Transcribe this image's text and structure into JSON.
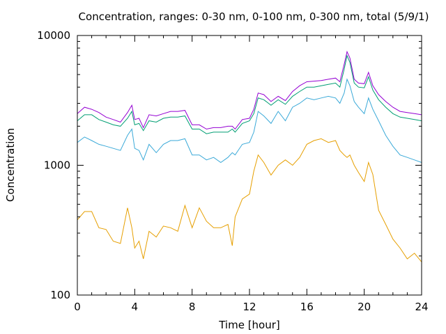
{
  "chart_data": {
    "type": "line",
    "title": "Concentration, ranges: 0-30 nm, 0-100 nm, 0-300 nm, total (5/9/1)",
    "xlabel": "Time [hour]",
    "ylabel": "Concentration",
    "xlim": [
      0,
      24
    ],
    "ylim": [
      100,
      10000
    ],
    "yscale": "log",
    "grid": false,
    "legend": "none",
    "x_ticks": [
      "0",
      "4",
      "8",
      "12",
      "16",
      "20",
      "24"
    ],
    "y_ticks": [
      "100",
      "1000",
      "10000"
    ],
    "x": [
      0,
      0.5,
      1,
      1.5,
      2,
      2.5,
      3,
      3.5,
      3.8,
      4,
      4.3,
      4.6,
      5,
      5.5,
      6,
      6.5,
      7,
      7.5,
      8,
      8.5,
      9,
      9.5,
      10,
      10.5,
      10.8,
      11,
      11.5,
      12,
      12.3,
      12.6,
      13,
      13.5,
      14,
      14.5,
      15,
      15.5,
      16,
      16.5,
      17,
      17.5,
      18,
      18.3,
      18.6,
      18.8,
      19,
      19.3,
      19.6,
      20,
      20.3,
      20.6,
      21,
      21.5,
      22,
      22.5,
      23,
      23.5,
      24
    ],
    "series": [
      {
        "color": "#e69f00",
        "values": [
          380,
          440,
          440,
          330,
          320,
          260,
          250,
          470,
          330,
          230,
          260,
          190,
          310,
          280,
          340,
          330,
          310,
          490,
          330,
          470,
          370,
          330,
          330,
          350,
          240,
          400,
          550,
          600,
          900,
          1200,
          1050,
          840,
          1000,
          1100,
          1000,
          1150,
          1450,
          1550,
          1600,
          1500,
          1550,
          1300,
          1200,
          1150,
          1200,
          1000,
          880,
          750,
          1050,
          850,
          450,
          350,
          270,
          230,
          190,
          210,
          180
        ]
      },
      {
        "color": "#3aa9d8",
        "values": [
          1500,
          1650,
          1550,
          1450,
          1400,
          1350,
          1300,
          1700,
          1900,
          1350,
          1300,
          1100,
          1450,
          1250,
          1450,
          1550,
          1550,
          1600,
          1200,
          1200,
          1100,
          1150,
          1050,
          1150,
          1250,
          1200,
          1450,
          1500,
          1800,
          2600,
          2400,
          2100,
          2600,
          2200,
          2800,
          3000,
          3300,
          3200,
          3300,
          3400,
          3300,
          3000,
          3600,
          4600,
          4100,
          3100,
          2800,
          2500,
          3300,
          2700,
          2200,
          1700,
          1400,
          1200,
          1150,
          1100,
          1050
        ]
      },
      {
        "color": "#009e73",
        "values": [
          2200,
          2450,
          2450,
          2250,
          2150,
          2050,
          2000,
          2300,
          2600,
          2050,
          2100,
          1850,
          2200,
          2150,
          2300,
          2350,
          2350,
          2400,
          1900,
          1900,
          1750,
          1800,
          1800,
          1800,
          1900,
          1800,
          2100,
          2200,
          2500,
          3300,
          3200,
          2900,
          3200,
          2950,
          3400,
          3700,
          4000,
          4000,
          4100,
          4200,
          4300,
          4000,
          5500,
          7000,
          6200,
          4300,
          4000,
          3950,
          4800,
          3800,
          3200,
          2800,
          2500,
          2350,
          2300,
          2250,
          2200
        ]
      },
      {
        "color": "#9400d3",
        "values": [
          2500,
          2800,
          2700,
          2550,
          2350,
          2250,
          2150,
          2550,
          2900,
          2250,
          2300,
          1950,
          2450,
          2400,
          2500,
          2600,
          2600,
          2650,
          2050,
          2050,
          1900,
          1950,
          1950,
          2000,
          2000,
          1900,
          2250,
          2300,
          2700,
          3600,
          3500,
          3100,
          3400,
          3150,
          3700,
          4100,
          4400,
          4450,
          4500,
          4600,
          4700,
          4400,
          6000,
          7500,
          6700,
          4600,
          4300,
          4250,
          5200,
          4100,
          3500,
          3100,
          2800,
          2600,
          2550,
          2500,
          2450
        ]
      }
    ]
  }
}
